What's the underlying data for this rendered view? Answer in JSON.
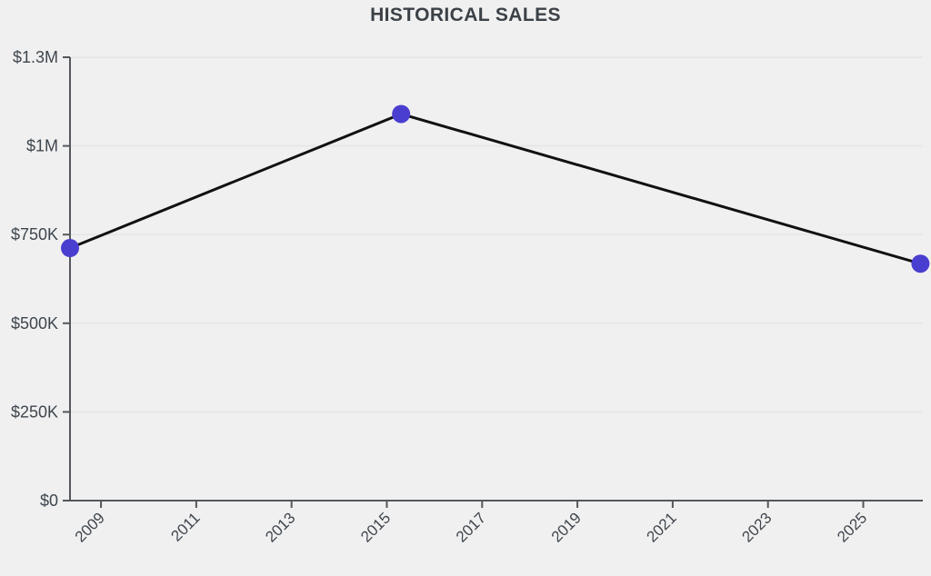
{
  "title": "HISTORICAL SALES",
  "chart_data": {
    "type": "line",
    "title": "HISTORICAL SALES",
    "x": [
      2008.35,
      2015.3,
      2026.2
    ],
    "y": [
      712000,
      1090000,
      668000
    ],
    "xlabel": "",
    "ylabel": "",
    "xlim": [
      2008.35,
      2026.25
    ],
    "ylim": [
      0,
      1250000
    ],
    "x_ticks": [
      {
        "value": 2009,
        "label": "2009"
      },
      {
        "value": 2011,
        "label": "2011"
      },
      {
        "value": 2013,
        "label": "2013"
      },
      {
        "value": 2015,
        "label": "2015"
      },
      {
        "value": 2017,
        "label": "2017"
      },
      {
        "value": 2019,
        "label": "2019"
      },
      {
        "value": 2021,
        "label": "2021"
      },
      {
        "value": 2023,
        "label": "2023"
      },
      {
        "value": 2025,
        "label": "2025"
      }
    ],
    "y_ticks": [
      {
        "value": 0,
        "label": "$0"
      },
      {
        "value": 250000,
        "label": "$250K"
      },
      {
        "value": 500000,
        "label": "$500K"
      },
      {
        "value": 750000,
        "label": "$750K"
      },
      {
        "value": 1000000,
        "label": "$1M"
      },
      {
        "value": 1250000,
        "label": "$1.3M"
      }
    ],
    "grid": "horizontal",
    "legend": "none",
    "colors": {
      "background": "#f0f0f0",
      "line": "#111111",
      "point": "#4a3ed0",
      "axis": "#54585d",
      "gridline": "#e7e7e7",
      "text": "#3f464e",
      "title": "#3b4147"
    },
    "point_radius": 10,
    "line_width": 3
  }
}
